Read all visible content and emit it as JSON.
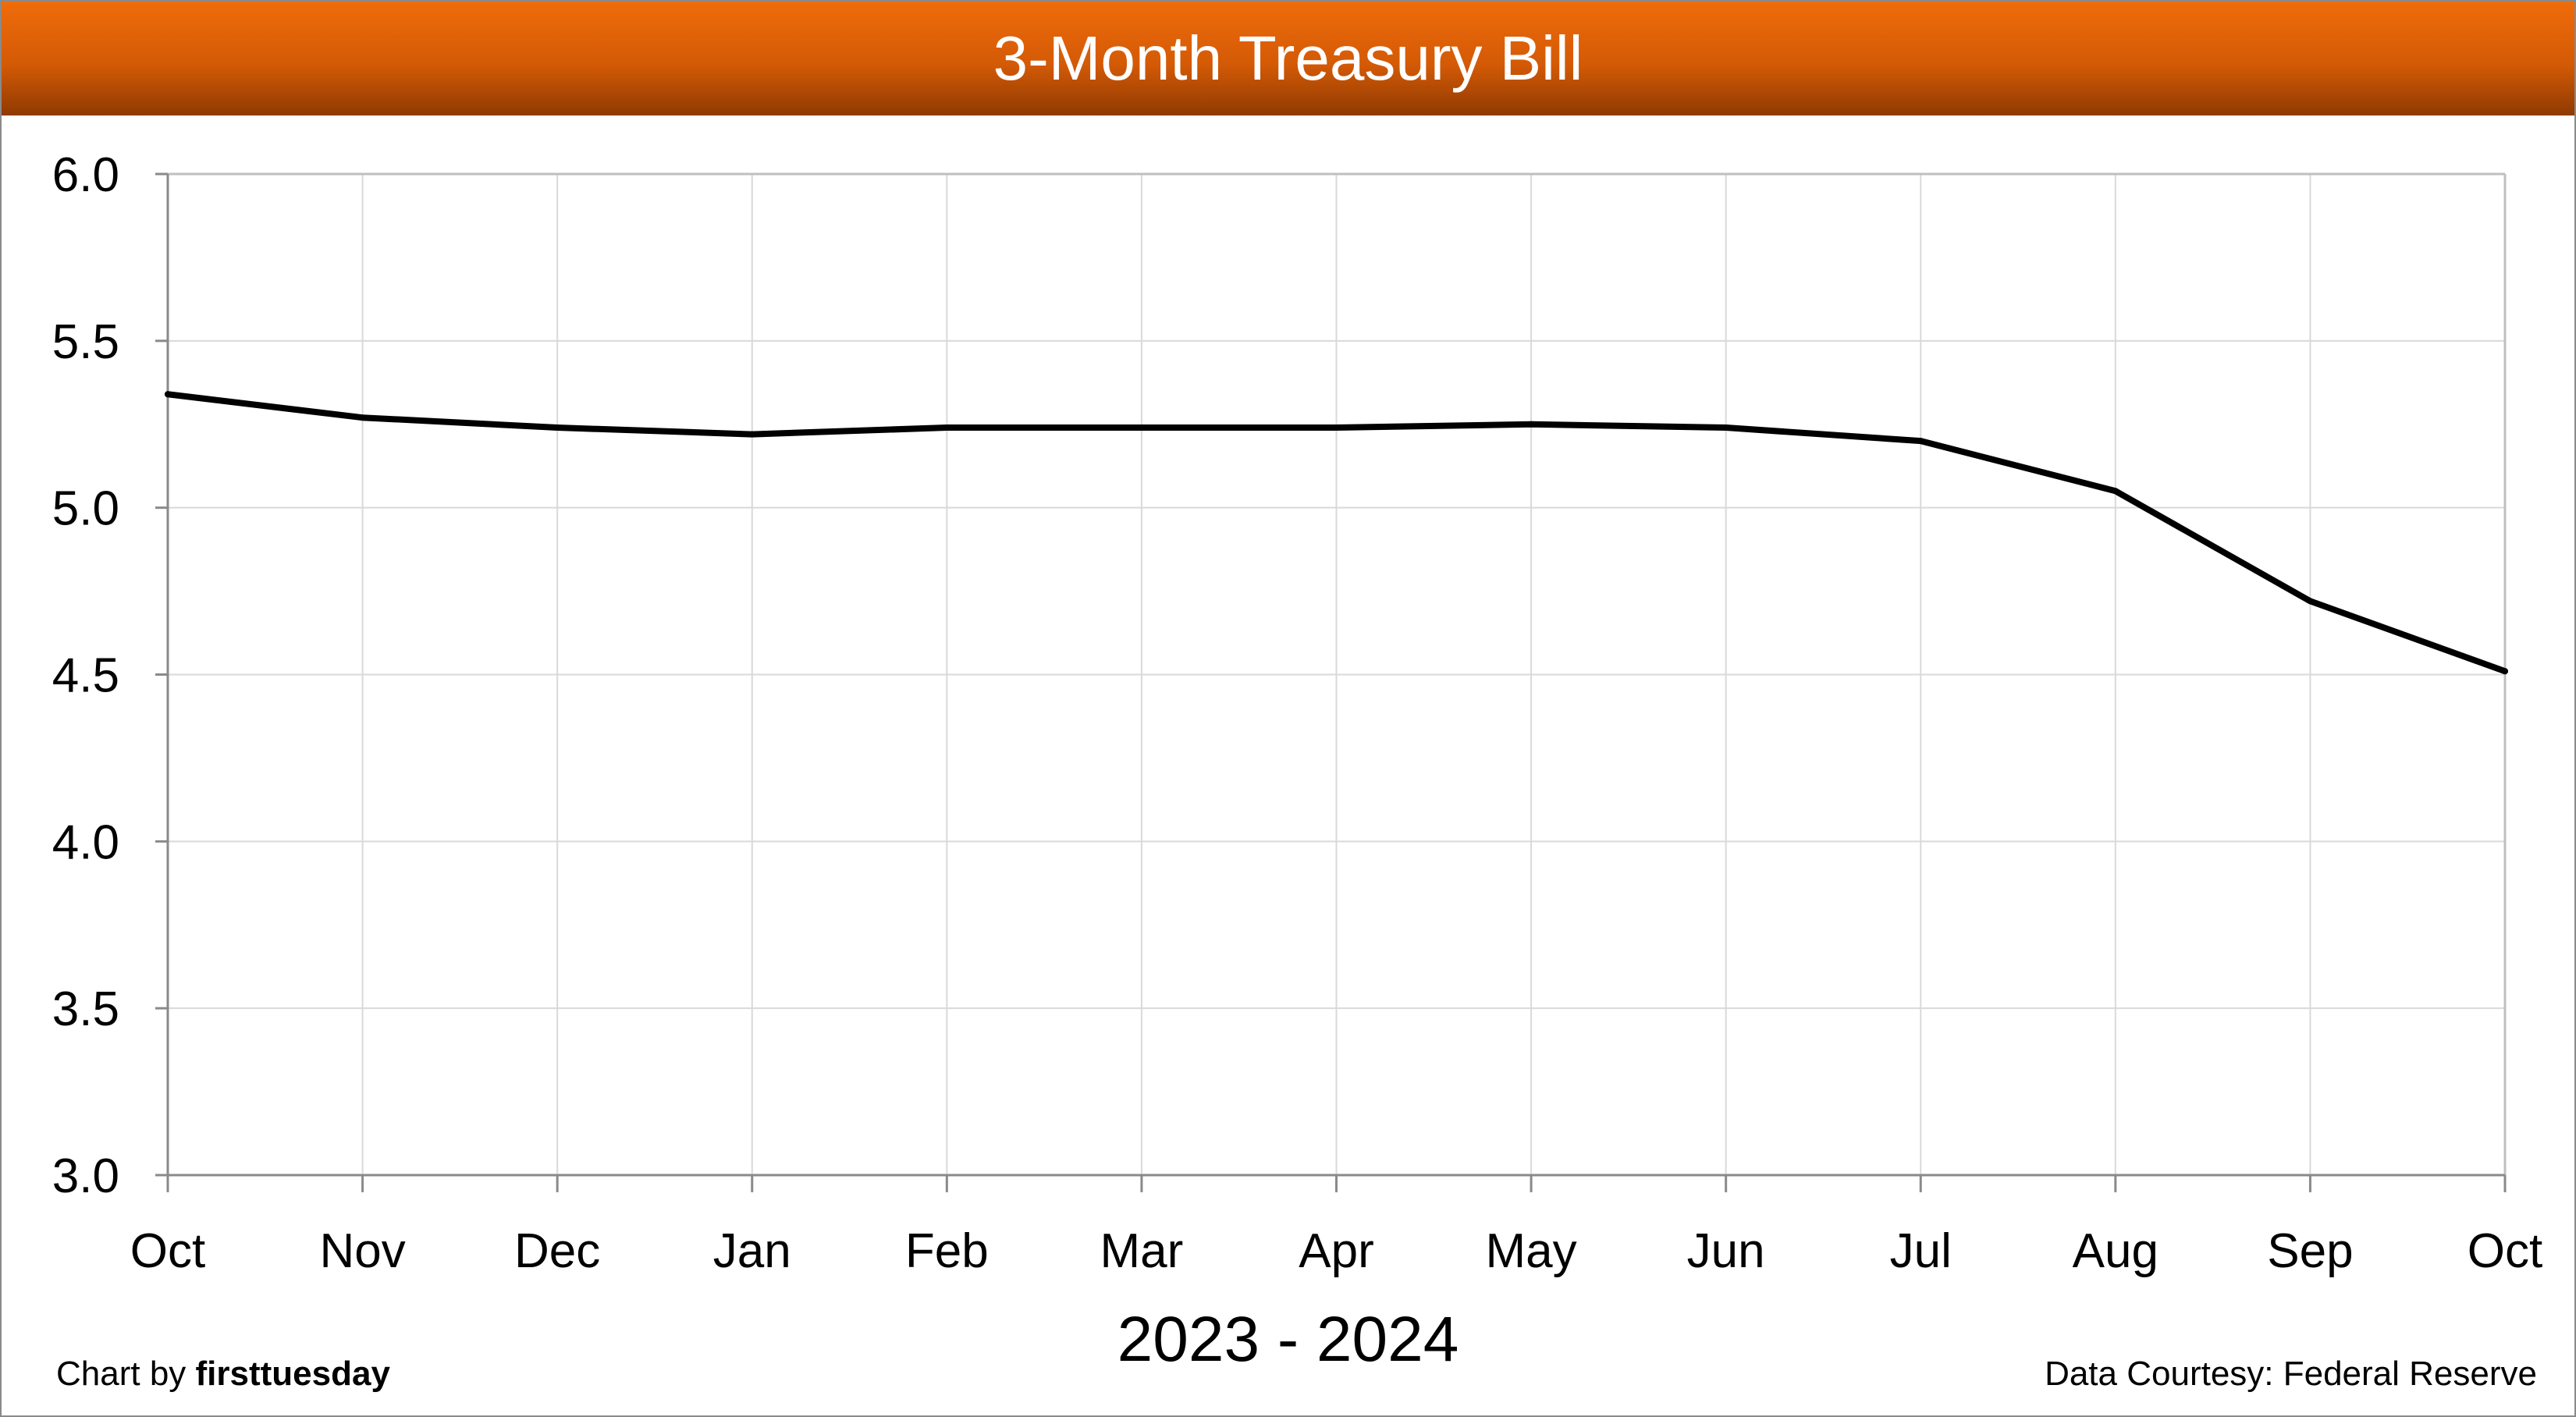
{
  "title": "3-Month Treasury Bill",
  "footer": {
    "credit_prefix": "Chart by",
    "credit_brand": "firsttuesday",
    "source": "Data Courtesy: Federal Reserve"
  },
  "colors": {
    "header_top": "#ef6c0a",
    "header_bottom": "#8f3a02",
    "line": "#000000",
    "grid": "#d9d9d9"
  },
  "chart_data": {
    "type": "line",
    "title": "3-Month Treasury Bill",
    "xlabel": "2023 - 2024",
    "ylabel": "",
    "categories": [
      "Oct",
      "Nov",
      "Dec",
      "Jan",
      "Feb",
      "Mar",
      "Apr",
      "May",
      "Jun",
      "Jul",
      "Aug",
      "Sep",
      "Oct"
    ],
    "values": [
      5.34,
      5.27,
      5.24,
      5.22,
      5.24,
      5.24,
      5.24,
      5.25,
      5.24,
      5.2,
      5.05,
      4.72,
      4.51
    ],
    "ylim": [
      3.0,
      6.0
    ],
    "yticks": [
      "3.0",
      "3.5",
      "4.0",
      "4.5",
      "5.0",
      "5.5",
      "6.0"
    ],
    "grid": true,
    "legend": "none"
  }
}
